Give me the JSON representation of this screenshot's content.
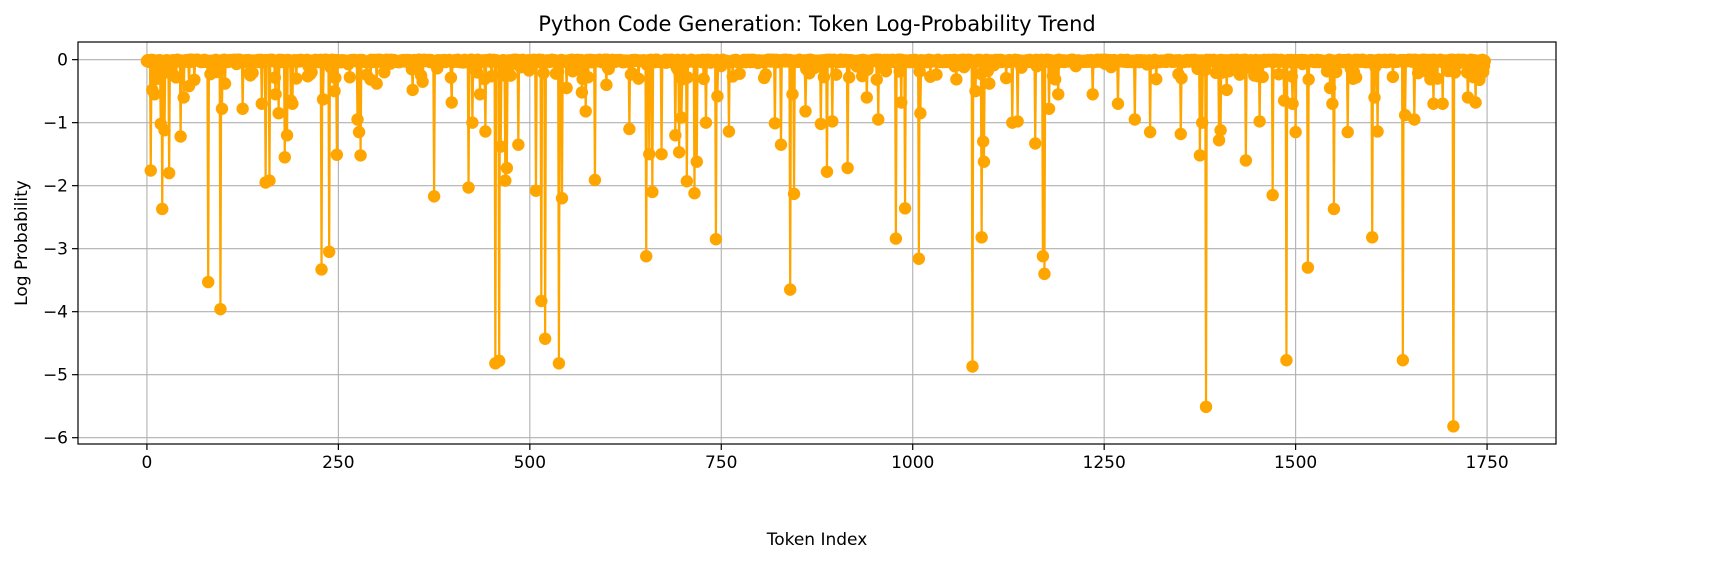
{
  "chart_data": {
    "type": "line",
    "title": "Python Code Generation: Token Log-Probability Trend",
    "xlabel": "Token Index",
    "ylabel": "Log Probability",
    "xlim": [
      -90,
      1840
    ],
    "ylim": [
      -6.1,
      0.28
    ],
    "xticks": [
      0,
      250,
      500,
      750,
      1000,
      1250,
      1500,
      1750
    ],
    "yticks": [
      0,
      -1,
      -2,
      -3,
      -4,
      -5,
      -6
    ],
    "grid": true,
    "color": "#FFA500",
    "marker": "circle",
    "n_tokens": 1748,
    "baseline": -0.02,
    "dips": [
      [
        5,
        -1.76
      ],
      [
        7,
        -0.48
      ],
      [
        10,
        -0.55
      ],
      [
        14,
        -0.3
      ],
      [
        18,
        -1.02
      ],
      [
        20,
        -2.37
      ],
      [
        23,
        -1.12
      ],
      [
        27,
        -0.2
      ],
      [
        29,
        -1.8
      ],
      [
        35,
        -0.25
      ],
      [
        44,
        -1.22
      ],
      [
        48,
        -0.6
      ],
      [
        55,
        -0.42
      ],
      [
        62,
        -0.32
      ],
      [
        80,
        -3.53
      ],
      [
        96,
        -3.96
      ],
      [
        98,
        -0.78
      ],
      [
        102,
        -0.38
      ],
      [
        125,
        -0.78
      ],
      [
        135,
        -0.25
      ],
      [
        150,
        -0.7
      ],
      [
        155,
        -1.95
      ],
      [
        160,
        -1.92
      ],
      [
        168,
        -0.55
      ],
      [
        172,
        -0.85
      ],
      [
        180,
        -1.55
      ],
      [
        183,
        -1.2
      ],
      [
        188,
        -0.65
      ],
      [
        190,
        -0.7
      ],
      [
        195,
        -0.3
      ],
      [
        215,
        -0.2
      ],
      [
        228,
        -3.33
      ],
      [
        230,
        -0.63
      ],
      [
        238,
        -3.05
      ],
      [
        245,
        -0.5
      ],
      [
        248,
        -1.51
      ],
      [
        265,
        -0.28
      ],
      [
        275,
        -0.95
      ],
      [
        277,
        -1.15
      ],
      [
        279,
        -1.52
      ],
      [
        300,
        -0.38
      ],
      [
        310,
        -0.2
      ],
      [
        347,
        -0.48
      ],
      [
        360,
        -0.35
      ],
      [
        375,
        -2.17
      ],
      [
        398,
        -0.68
      ],
      [
        420,
        -2.03
      ],
      [
        425,
        -1.0
      ],
      [
        435,
        -0.55
      ],
      [
        442,
        -1.14
      ],
      [
        455,
        -4.82
      ],
      [
        460,
        -4.78
      ],
      [
        462,
        -1.38
      ],
      [
        468,
        -1.92
      ],
      [
        470,
        -1.72
      ],
      [
        485,
        -1.35
      ],
      [
        508,
        -2.08
      ],
      [
        515,
        -3.83
      ],
      [
        520,
        -4.43
      ],
      [
        538,
        -4.82
      ],
      [
        542,
        -2.2
      ],
      [
        548,
        -0.45
      ],
      [
        568,
        -0.52
      ],
      [
        573,
        -0.82
      ],
      [
        585,
        -1.91
      ],
      [
        600,
        -0.4
      ],
      [
        630,
        -1.1
      ],
      [
        652,
        -3.12
      ],
      [
        656,
        -1.5
      ],
      [
        660,
        -2.1
      ],
      [
        672,
        -1.5
      ],
      [
        690,
        -1.2
      ],
      [
        695,
        -1.47
      ],
      [
        698,
        -0.92
      ],
      [
        705,
        -1.93
      ],
      [
        715,
        -2.12
      ],
      [
        718,
        -1.62
      ],
      [
        730,
        -1.0
      ],
      [
        743,
        -2.85
      ],
      [
        745,
        -0.58
      ],
      [
        760,
        -1.14
      ],
      [
        820,
        -1.01
      ],
      [
        828,
        -1.35
      ],
      [
        840,
        -3.65
      ],
      [
        843,
        -0.55
      ],
      [
        845,
        -2.13
      ],
      [
        860,
        -0.82
      ],
      [
        880,
        -1.02
      ],
      [
        888,
        -1.78
      ],
      [
        895,
        -0.98
      ],
      [
        915,
        -1.72
      ],
      [
        940,
        -0.6
      ],
      [
        955,
        -0.95
      ],
      [
        978,
        -2.84
      ],
      [
        985,
        -0.68
      ],
      [
        990,
        -2.36
      ],
      [
        1008,
        -3.16
      ],
      [
        1010,
        -0.85
      ],
      [
        1078,
        -4.87
      ],
      [
        1082,
        -0.5
      ],
      [
        1090,
        -2.82
      ],
      [
        1092,
        -1.3
      ],
      [
        1093,
        -1.62
      ],
      [
        1100,
        -0.38
      ],
      [
        1130,
        -1.0
      ],
      [
        1137,
        -0.98
      ],
      [
        1160,
        -1.33
      ],
      [
        1170,
        -3.12
      ],
      [
        1172,
        -3.4
      ],
      [
        1178,
        -0.78
      ],
      [
        1190,
        -0.55
      ],
      [
        1235,
        -0.55
      ],
      [
        1268,
        -0.7
      ],
      [
        1290,
        -0.95
      ],
      [
        1310,
        -1.15
      ],
      [
        1350,
        -1.18
      ],
      [
        1375,
        -1.52
      ],
      [
        1378,
        -1.0
      ],
      [
        1383,
        -5.51
      ],
      [
        1400,
        -1.28
      ],
      [
        1402,
        -1.12
      ],
      [
        1410,
        -0.48
      ],
      [
        1435,
        -1.6
      ],
      [
        1453,
        -0.98
      ],
      [
        1470,
        -2.15
      ],
      [
        1485,
        -0.65
      ],
      [
        1488,
        -4.77
      ],
      [
        1496,
        -0.7
      ],
      [
        1500,
        -1.15
      ],
      [
        1516,
        -3.3
      ],
      [
        1545,
        -0.45
      ],
      [
        1548,
        -0.7
      ],
      [
        1550,
        -2.37
      ],
      [
        1568,
        -1.15
      ],
      [
        1600,
        -2.82
      ],
      [
        1603,
        -0.6
      ],
      [
        1607,
        -1.14
      ],
      [
        1640,
        -4.77
      ],
      [
        1643,
        -0.88
      ],
      [
        1655,
        -0.95
      ],
      [
        1680,
        -0.7
      ],
      [
        1692,
        -0.7
      ],
      [
        1706,
        -5.82
      ],
      [
        1725,
        -0.6
      ],
      [
        1735,
        -0.68
      ],
      [
        1740,
        -0.32
      ]
    ]
  }
}
